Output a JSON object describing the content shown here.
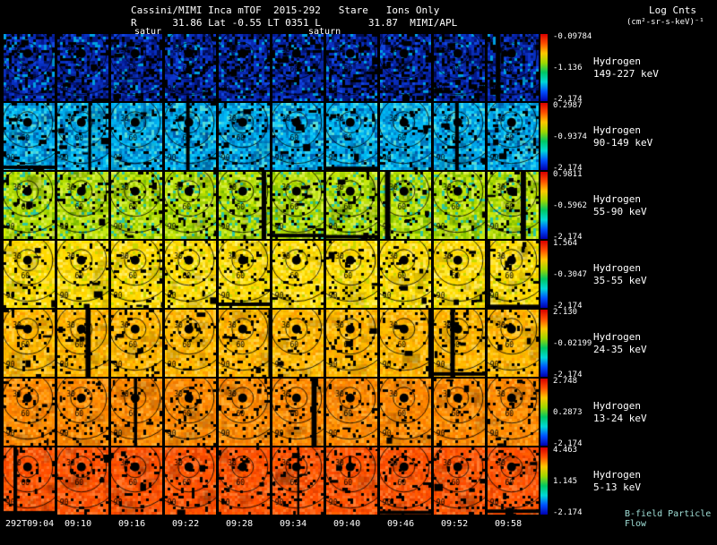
{
  "header": {
    "title": "Cassini/MIMI Inca mTOF  2015-292   Stare   Ions Only",
    "subtitle": "R      31.86 Lat -0.55 LT 0351 L        31.87  MIMI/APL",
    "legend_title": "Log Cnts",
    "legend_units": "(cm²-sr-s-keV)⁻¹",
    "marker_left": "satur",
    "marker_right": "saturn"
  },
  "footer": {
    "bfield_label": "B-field Particle Flow"
  },
  "contour_labels": [
    "30",
    "60",
    "90"
  ],
  "colorbar": {
    "stops": [
      "#d80000",
      "#ff5000",
      "#ffc800",
      "#a0d800",
      "#00c864",
      "#00d8d8",
      "#0050ff",
      "#0000b0"
    ]
  },
  "time_axis": {
    "ticks": [
      "292T09:04",
      "09:10",
      "09:16",
      "09:22",
      "09:28",
      "09:34",
      "09:40",
      "09:46",
      "09:52",
      "09:58"
    ]
  },
  "rows": [
    {
      "species": "Hydrogen",
      "energy": "149-227 keV",
      "cb_top": "-0.09784",
      "cb_mid": "-1.136",
      "cb_bot": "-2.174",
      "patches": 5,
      "palette": [
        "#0a2bb4",
        "#0620a0",
        "#03188a",
        "#0d35cc",
        "#000000",
        "#041674",
        "#1247e0",
        "#0a2bb4",
        "#000c50",
        "#000000",
        "#0630c0",
        "#00a0e0",
        "#000000"
      ]
    },
    {
      "species": "Hydrogen",
      "energy": "90-149 keV",
      "cb_top": "0.2987",
      "cb_mid": "-0.9374",
      "cb_bot": "-2.174",
      "patches": 4,
      "palette": [
        "#00aaee",
        "#00bbf4",
        "#0099dd",
        "#11ccf8",
        "#0088cc",
        "#00b4ee",
        "#33d0ee",
        "#0077bb",
        "#00a2e6",
        "#005fb0",
        "#000000",
        "#55dcd8"
      ]
    },
    {
      "species": "Hydrogen",
      "energy": "55-90 keV",
      "cb_top": "0.9811",
      "cb_mid": "-0.5962",
      "cb_bot": "-2.174",
      "patches": 3,
      "palette": [
        "#b4dc00",
        "#c4e818",
        "#a2d000",
        "#d2ee3c",
        "#8cc600",
        "#bce014",
        "#cce800",
        "#7aba00",
        "#dcee50",
        "#aad800",
        "#000000",
        "#2cc8a0"
      ]
    },
    {
      "species": "Hydrogen",
      "energy": "35-55 keV",
      "cb_top": "1.564",
      "cb_mid": "-0.3047",
      "cb_bot": "-2.174",
      "patches": 3,
      "palette": [
        "#ffdf00",
        "#ffd700",
        "#ffe92c",
        "#f2cd00",
        "#ffe348",
        "#ffd200",
        "#e6c400",
        "#fff065",
        "#ffdb00",
        "#f8e412",
        "#000000",
        "#c8d800"
      ]
    },
    {
      "species": "Hydrogen",
      "energy": "24-35 keV",
      "cb_top": "2.130",
      "cb_mid": "-0.02199",
      "cb_bot": "-2.174",
      "patches": 3,
      "palette": [
        "#ffc100",
        "#ffb500",
        "#ffcb14",
        "#ffab00",
        "#f2b300",
        "#ffc934",
        "#ffbd00",
        "#e6a300",
        "#ffd148",
        "#ffb100",
        "#000000",
        "#ff9e00"
      ]
    },
    {
      "species": "Hydrogen",
      "energy": "13-24 keV",
      "cb_top": "2.748",
      "cb_mid": "0.2873",
      "cb_bot": "-2.174",
      "patches": 3,
      "palette": [
        "#ff9100",
        "#ff8500",
        "#ff9d14",
        "#f27b00",
        "#ff8900",
        "#ffa328",
        "#e67500",
        "#ff9500",
        "#ff7d00",
        "#f28914",
        "#000000",
        "#ffad30"
      ]
    },
    {
      "species": "Hydrogen",
      "energy": "5-13 keV",
      "cb_top": "4.463",
      "cb_mid": "1.145",
      "cb_bot": "-2.174",
      "patches": 4,
      "palette": [
        "#ff5a00",
        "#ff4e00",
        "#ff661a",
        "#f24600",
        "#ff5200",
        "#ff6e26",
        "#e64200",
        "#ff5e00",
        "#ff4a00",
        "#f25a14",
        "#000000",
        "#ff7c30"
      ]
    }
  ],
  "chart_data": {
    "type": "heatmap",
    "title": "Cassini/MIMI Inca mTOF 2015-292 Stare Ions Only",
    "subtitle": "R 31.86 Lat -0.55 LT 0351 L 31.87 MIMI/APL",
    "colorbar_label": "Log Cnts (cm²-sr-s-keV)⁻¹",
    "x": [
      "292T09:04",
      "09:10",
      "09:16",
      "09:22",
      "09:28",
      "09:34",
      "09:40",
      "09:46",
      "09:52",
      "09:58"
    ],
    "angle_contours_deg": [
      30,
      60,
      90
    ],
    "legend_position": "right",
    "channels": [
      {
        "name": "Hydrogen 149-227 keV",
        "scale_max": -0.09784,
        "scale_mid": -1.136,
        "scale_min": -2.174,
        "dominant_color": "dark blue"
      },
      {
        "name": "Hydrogen 90-149 keV",
        "scale_max": 0.2987,
        "scale_mid": -0.9374,
        "scale_min": -2.174,
        "dominant_color": "cyan"
      },
      {
        "name": "Hydrogen 55-90 keV",
        "scale_max": 0.9811,
        "scale_mid": -0.5962,
        "scale_min": -2.174,
        "dominant_color": "yellow-green"
      },
      {
        "name": "Hydrogen 35-55 keV",
        "scale_max": 1.564,
        "scale_mid": -0.3047,
        "scale_min": -2.174,
        "dominant_color": "yellow"
      },
      {
        "name": "Hydrogen 24-35 keV",
        "scale_max": 2.13,
        "scale_mid": -0.02199,
        "scale_min": -2.174,
        "dominant_color": "orange-yellow"
      },
      {
        "name": "Hydrogen 13-24 keV",
        "scale_max": 2.748,
        "scale_mid": 0.2873,
        "scale_min": -2.174,
        "dominant_color": "orange"
      },
      {
        "name": "Hydrogen 5-13 keV",
        "scale_max": 4.463,
        "scale_mid": 1.145,
        "scale_min": -2.174,
        "dominant_color": "red-orange"
      }
    ]
  }
}
